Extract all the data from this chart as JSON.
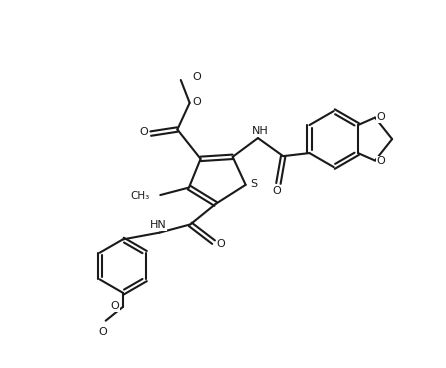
{
  "background_color": "#ffffff",
  "line_color": "#1a1a1a",
  "line_width": 1.5,
  "figure_width": 4.46,
  "figure_height": 3.68,
  "dpi": 100,
  "xlim": [
    0,
    10
  ],
  "ylim": [
    0,
    8.3
  ],
  "text_fs": 7.5,
  "label_fs": 8.0
}
